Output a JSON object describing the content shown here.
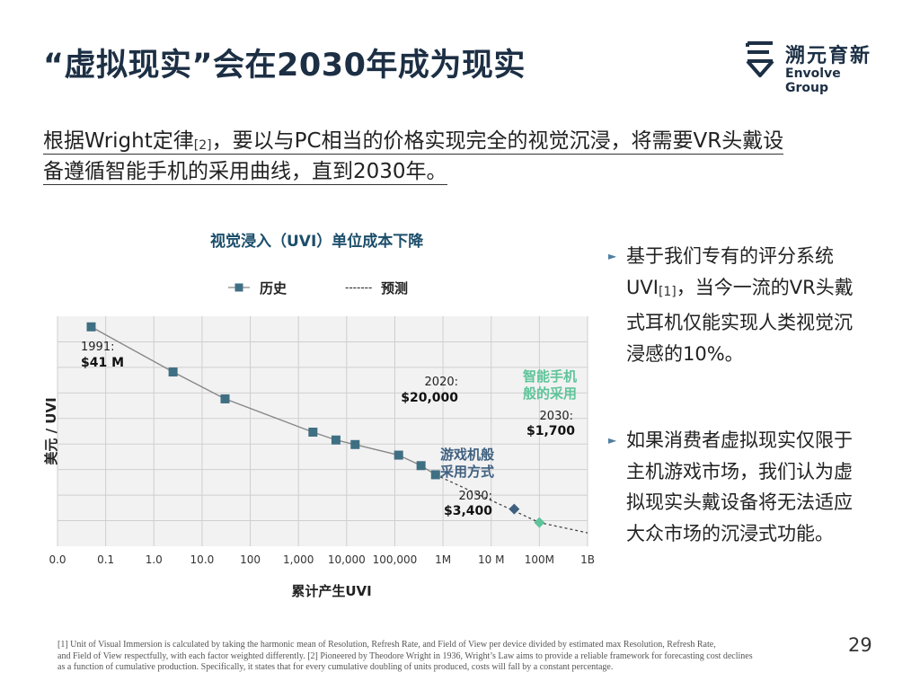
{
  "slide": {
    "title": "“虚拟现实”会在2030年成为现实",
    "page_number": "29",
    "logo": {
      "cn": "溯元育新",
      "en": "Envolve Group",
      "brand_color": "#1c2f44"
    },
    "intro": {
      "line1_a": "根据Wright定律",
      "line1_ref": "[2]",
      "line1_b": "，要以与PC相当的价格实现完全的视觉沉浸，将需要VR头戴设",
      "line2": "备遵循智能手机的采用曲线，直到2030年。"
    },
    "bullets": [
      {
        "icon": "arrow-bullet-icon",
        "lines": [
          {
            "text": "基于我们专有的评分系统"
          },
          {
            "text": "UVI",
            "ref": "[1]",
            "text2": "，当今一流的VR头戴"
          },
          {
            "text": "式耳机仅能实现人类视觉沉"
          },
          {
            "text": "浸感的10%。"
          }
        ]
      },
      {
        "icon": "arrow-bullet-icon",
        "lines": [
          {
            "text": "如果消费者虚拟现实仅限于"
          },
          {
            "text": "主机游戏市场，我们认为虚"
          },
          {
            "text": "拟现实头戴设备将无法适应"
          },
          {
            "text": "大众市场的沉浸式功能。"
          }
        ]
      }
    ],
    "footnote": [
      "[1] Unit of Visual Immersion is calculated by taking the harmonic mean of Resolution, Refresh Rate, and Field of View per device divided by estimated max Resolution, Refresh Rate,",
      "and Field of View respectfully, with each factor weighted differently. [2] Pioneered by Theodore Wright in 1936, Wright’s Law aims to provide a reliable framework for forecasting cost declines",
      "as a function of cumulative production. Specifically, it states that for every cumulative doubling of units produced, costs will fall by a constant percentage."
    ]
  },
  "chart_data": {
    "type": "scatter",
    "title": "视觉浸入（UVI）单位成本下降",
    "xlabel": "累计产生UVI",
    "ylabel": "美元 / UVI",
    "x_scale": "log",
    "x_tick_labels": [
      "0.0",
      "0.1",
      "1.0",
      "10.0",
      "100",
      "1,000",
      "10,000",
      "100,000",
      "1M",
      "10 M",
      "100M",
      "1B"
    ],
    "x_tick_values": [
      0.01,
      0.1,
      1,
      10,
      100,
      1000,
      10000,
      100000,
      1000000,
      10000000,
      100000000,
      1000000000
    ],
    "y_tick_labels": [],
    "grid": true,
    "legend": {
      "placement": "top",
      "historical": "历史",
      "forecast_dash": "-------",
      "forecast": "预测"
    },
    "colors": {
      "historical": "#3f6f83",
      "line": "#888888",
      "gaming": "#3f6080",
      "smartphone": "#5fc49a",
      "grid": "#cfcfcf",
      "plot_bg": "#f2f2f2"
    },
    "series": [
      {
        "name": "历史",
        "style": "solid-square",
        "x": [
          0.05,
          2.5,
          30,
          2000,
          6000,
          15000,
          120000,
          350000,
          700000
        ],
        "y": [
          41000000,
          4000000,
          1000000,
          180000,
          120000,
          95000,
          55000,
          32000,
          20000
        ]
      },
      {
        "name": "预测",
        "style": "dashed",
        "x": [
          700000,
          100000000,
          1000000000
        ],
        "y": [
          20000,
          1700,
          1000
        ]
      }
    ],
    "scenarios": [
      {
        "label_line1": "游戏机般",
        "label_line2": "采用方式",
        "year": "2030:",
        "value": "$3,400",
        "x": 30000000,
        "y": 3400,
        "marker": "diamond",
        "color": "#3f6080"
      },
      {
        "label_line1": "智能手机",
        "label_line2": "般的采用",
        "year": "2030:",
        "value": "$1,700",
        "x": 100000000,
        "y": 1700,
        "marker": "diamond",
        "color": "#5fc49a"
      }
    ],
    "annotations": [
      {
        "year": "1991:",
        "value": "$41 M",
        "x": 0.05,
        "y": 41000000
      },
      {
        "year": "2020:",
        "value": "$20,000",
        "x": 700000,
        "y": 20000
      }
    ]
  }
}
